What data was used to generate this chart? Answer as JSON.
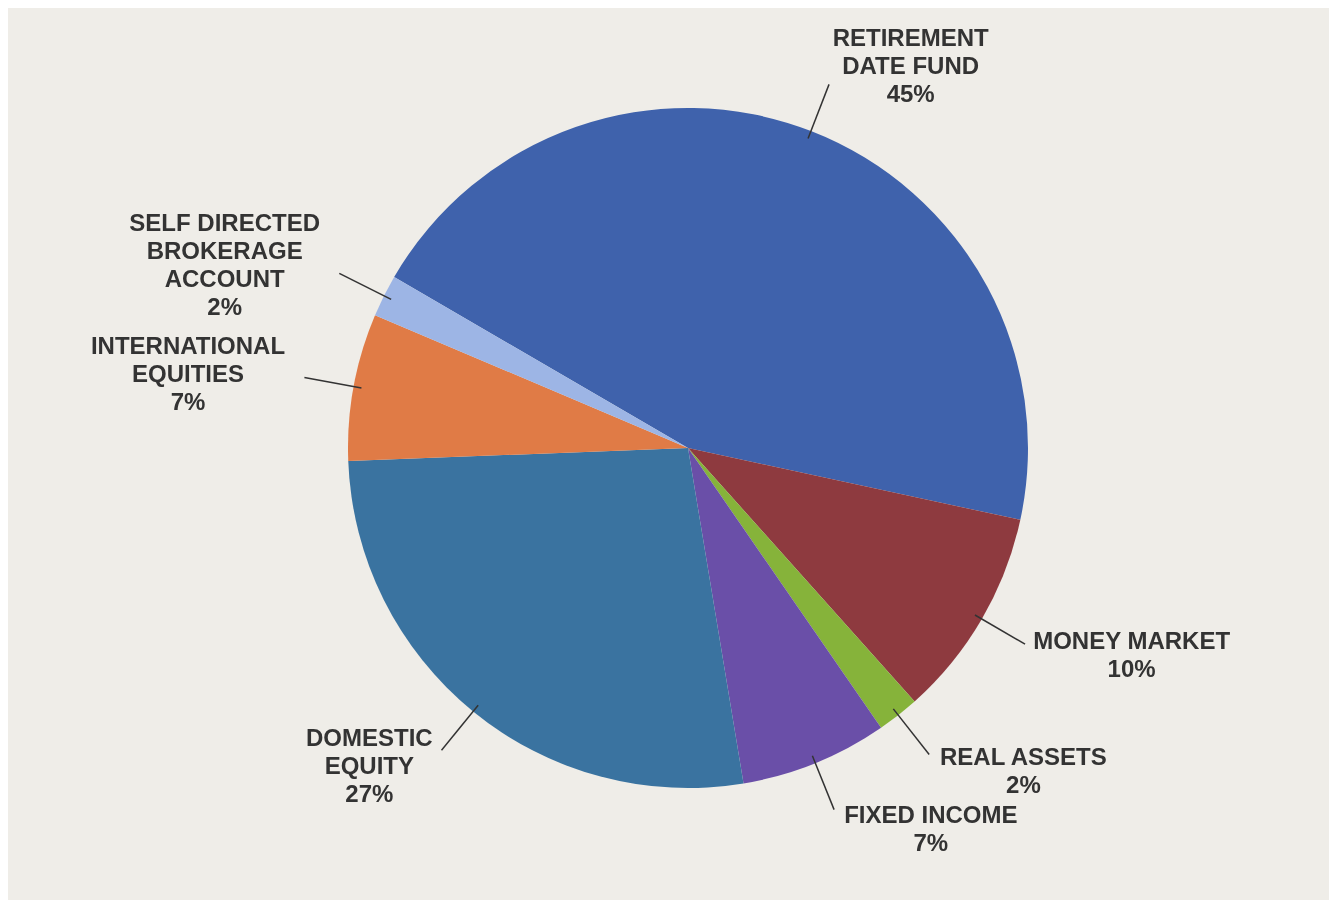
{
  "chart_data": {
    "type": "pie",
    "categories": [
      "RETIREMENT DATE FUND",
      "MONEY MARKET",
      "REAL ASSETS",
      "FIXED INCOME",
      "DOMESTIC EQUITY",
      "INTERNATIONAL EQUITIES",
      "SELF DIRECTED BROKERAGE ACCOUNT"
    ],
    "values": [
      45,
      10,
      2,
      7,
      27,
      7,
      2
    ],
    "colors": [
      "#3f62ac",
      "#8e3a3f",
      "#86b33a",
      "#6a4fa8",
      "#3a73a0",
      "#e07b46",
      "#9db5e5"
    ],
    "value_labels": [
      "45%",
      "10%",
      "2%",
      "7%",
      "27%",
      "7%",
      "2%"
    ]
  }
}
